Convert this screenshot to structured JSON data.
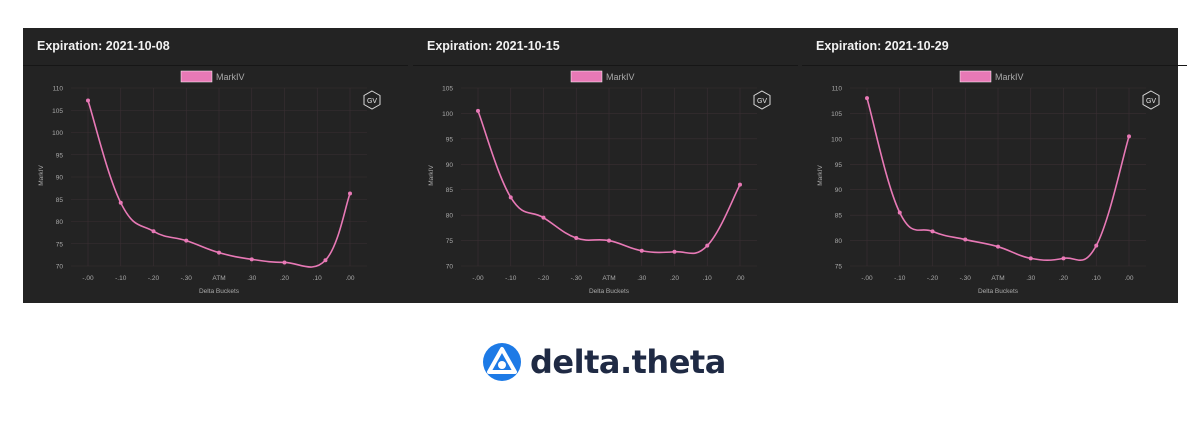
{
  "chart_data": [
    {
      "type": "line",
      "title": "Expiration: 2021-10-08",
      "legend": "MarkIV",
      "badge": "GV",
      "xlabel": "Delta Buckets",
      "ylabel": "MarkIV",
      "categories": [
        "-.00",
        "-.10",
        "-.20",
        "-.30",
        "ATM",
        ".30",
        ".20",
        ".10",
        ".00"
      ],
      "ylim": [
        70,
        110
      ],
      "yticks": [
        70,
        75,
        80,
        85,
        90,
        95,
        100,
        105,
        110
      ],
      "x": [
        0,
        1,
        2,
        3,
        4,
        5,
        6,
        7.25,
        8
      ],
      "values": [
        107.2,
        84.2,
        77.8,
        75.7,
        73.0,
        71.5,
        70.8,
        71.3,
        86.3
      ]
    },
    {
      "type": "line",
      "title": "Expiration: 2021-10-15",
      "legend": "MarkIV",
      "badge": "GV",
      "xlabel": "Delta Buckets",
      "ylabel": "MarkIV",
      "categories": [
        "-.00",
        "-.10",
        "-.20",
        "-.30",
        "ATM",
        ".30",
        ".20",
        ".10",
        ".00"
      ],
      "ylim": [
        70,
        105
      ],
      "yticks": [
        70,
        75,
        80,
        85,
        90,
        95,
        100,
        105
      ],
      "x": [
        0,
        1,
        2,
        3,
        4,
        5,
        6,
        7,
        8
      ],
      "values": [
        100.5,
        83.5,
        79.5,
        75.5,
        75.0,
        73.0,
        72.8,
        74.0,
        86.0
      ]
    },
    {
      "type": "line",
      "title": "Expiration: 2021-10-29",
      "legend": "MarkIV",
      "badge": "GV",
      "xlabel": "Delta Buckets",
      "ylabel": "MarkIV",
      "categories": [
        "-.00",
        "-.10",
        "-.20",
        "-.30",
        "ATM",
        ".30",
        ".20",
        ".10",
        ".00"
      ],
      "ylim": [
        75,
        110
      ],
      "yticks": [
        75,
        80,
        85,
        90,
        95,
        100,
        105,
        110
      ],
      "x": [
        0,
        1,
        2,
        3,
        4,
        5,
        6,
        7,
        8
      ],
      "values": [
        108.0,
        85.5,
        81.8,
        80.2,
        78.8,
        76.5,
        76.5,
        79.0,
        100.5
      ]
    }
  ],
  "colors": {
    "series": "#e879b6",
    "panel": "#232323",
    "grid": "#3a2f33",
    "text": "#a9a9a9"
  },
  "brand": {
    "name": "delta.theta",
    "logo_icon": "delta-theta-logo-icon"
  }
}
